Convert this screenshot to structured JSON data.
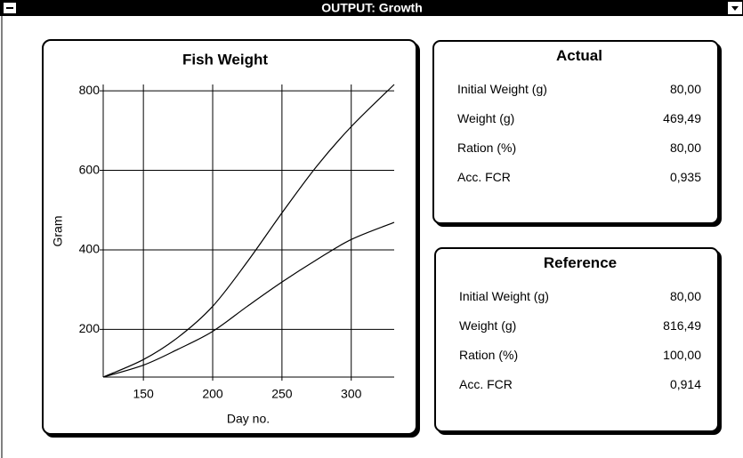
{
  "window": {
    "title": "OUTPUT: Growth"
  },
  "chart_data": {
    "type": "line",
    "title": "Fish Weight",
    "x_label": "Day no.",
    "y_label": "Gram",
    "x": [
      121,
      150,
      175,
      200,
      225,
      250,
      275,
      300,
      331
    ],
    "series": [
      {
        "color": "#000000",
        "values": [
          80,
          124,
          180,
          258,
          370,
          493,
          610,
          710,
          816
        ]
      },
      {
        "color": "#000000",
        "values": [
          80,
          110,
          150,
          195,
          258,
          319,
          375,
          426,
          469
        ]
      }
    ],
    "xlim": [
      121,
      331
    ],
    "ylim": [
      80,
      816
    ],
    "xticks": [
      150,
      200,
      250,
      300
    ],
    "yticks": [
      200,
      400,
      600,
      800
    ],
    "grid": true
  },
  "panels": [
    {
      "title": "Actual",
      "rows": [
        [
          "Initial Weight (g)",
          "80,00"
        ],
        [
          "Weight (g)",
          "469,49"
        ],
        [
          "Ration (%)",
          "80,00"
        ],
        [
          "Acc. FCR",
          "0,935"
        ]
      ]
    },
    {
      "title": "Reference",
      "rows": [
        [
          "Initial Weight (g)",
          "80,00"
        ],
        [
          "Weight (g)",
          "816,49"
        ],
        [
          "Ration (%)",
          "100,00"
        ],
        [
          "Acc. FCR",
          "0,914"
        ]
      ]
    }
  ]
}
